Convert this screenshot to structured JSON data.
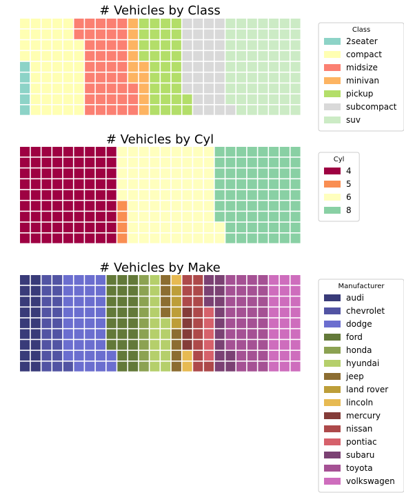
{
  "chart_data": [
    {
      "type": "waffle",
      "title": "# Vehicles by Class",
      "rows": 9,
      "cols": 26,
      "legend_title": "Class",
      "legend_placement": "upper-right-outside",
      "categories": [
        "2seater",
        "compact",
        "midsize",
        "minivan",
        "pickup",
        "subcompact",
        "suv"
      ],
      "values": [
        5,
        47,
        41,
        11,
        33,
        35,
        62
      ],
      "colors": [
        "#8dd3c7",
        "#ffffb3",
        "#fb8072",
        "#fdb462",
        "#b3de69",
        "#d9d9d9",
        "#ccebc5"
      ]
    },
    {
      "type": "waffle",
      "title": "# Vehicles by Cyl",
      "rows": 9,
      "cols": 26,
      "legend_title": "Cyl",
      "legend_placement": "upper-right-outside",
      "categories": [
        "4",
        "5",
        "6",
        "8"
      ],
      "values": [
        81,
        4,
        79,
        70
      ],
      "colors": [
        "#9e0142",
        "#f98e52",
        "#ffffbe",
        "#89d0a4"
      ]
    },
    {
      "type": "waffle",
      "title": "# Vehicles by Make",
      "rows": 9,
      "cols": 26,
      "legend_title": "Manufacturer",
      "legend_placement": "upper-right-outside",
      "categories": [
        "audi",
        "chevrolet",
        "dodge",
        "ford",
        "honda",
        "hyundai",
        "jeep",
        "land rover",
        "lincoln",
        "mercury",
        "nissan",
        "pontiac",
        "subaru",
        "toyota",
        "volkswagen"
      ],
      "values": [
        18,
        19,
        37,
        25,
        9,
        14,
        8,
        4,
        3,
        4,
        13,
        5,
        14,
        34,
        27
      ],
      "colors": [
        "#393b79",
        "#5254a3",
        "#6b6ecf",
        "#637939",
        "#8ca252",
        "#b5cf6b",
        "#8c6d31",
        "#bd9e39",
        "#e7ba52",
        "#843c39",
        "#ad494a",
        "#d6616b",
        "#7b4173",
        "#a55194",
        "#ce6dbd"
      ]
    }
  ]
}
